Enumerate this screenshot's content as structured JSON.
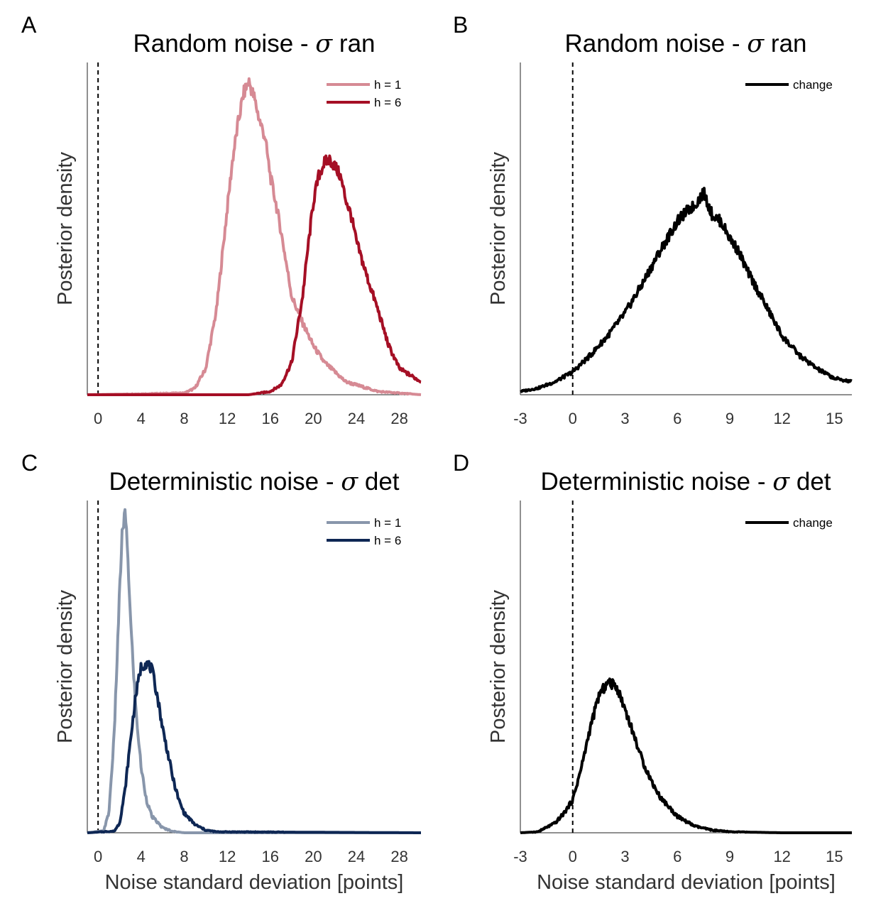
{
  "figure": {
    "panels": [
      {
        "letter": "A",
        "title_prefix": "Random noise - ",
        "title_symbol": "σ",
        "title_suffix": " ran",
        "ylabel": "Posterior density",
        "xlabel": "",
        "xlim": [
          -1,
          30
        ],
        "xticks": [
          "0",
          "4",
          "8",
          "12",
          "16",
          "20",
          "24",
          "28"
        ],
        "xtick_values": [
          0,
          4,
          8,
          12,
          16,
          20,
          24,
          28
        ],
        "legend": [
          {
            "label": "h = 1",
            "color": "#d68a94"
          },
          {
            "label": "h = 6",
            "color": "#a50f25"
          }
        ]
      },
      {
        "letter": "B",
        "title_prefix": "Random noise - ",
        "title_symbol": "σ",
        "title_suffix": " ran",
        "ylabel": "Posterior density",
        "xlabel": "",
        "xlim": [
          -3,
          16
        ],
        "xticks": [
          "-3",
          "0",
          "3",
          "6",
          "9",
          "12",
          "15"
        ],
        "xtick_values": [
          -3,
          0,
          3,
          6,
          9,
          12,
          15
        ],
        "legend": [
          {
            "label": "change",
            "color": "#000000"
          }
        ]
      },
      {
        "letter": "C",
        "title_prefix": "Deterministic noise - ",
        "title_symbol": "σ",
        "title_suffix": " det",
        "ylabel": "Posterior density",
        "xlabel": "Noise standard deviation [points]",
        "xlim": [
          -1,
          30
        ],
        "xticks": [
          "0",
          "4",
          "8",
          "12",
          "16",
          "20",
          "24",
          "28"
        ],
        "xtick_values": [
          0,
          4,
          8,
          12,
          16,
          20,
          24,
          28
        ],
        "legend": [
          {
            "label": "h = 1",
            "color": "#8896ab"
          },
          {
            "label": "h = 6",
            "color": "#0e2754"
          }
        ]
      },
      {
        "letter": "D",
        "title_prefix": "Deterministic noise - ",
        "title_symbol": "σ",
        "title_suffix": " det",
        "ylabel": "Posterior density",
        "xlabel": "Noise standard deviation [points]",
        "xlim": [
          -3,
          16
        ],
        "xticks": [
          "-3",
          "0",
          "3",
          "6",
          "9",
          "12",
          "15"
        ],
        "xtick_values": [
          -3,
          0,
          3,
          6,
          9,
          12,
          15
        ],
        "legend": [
          {
            "label": "change",
            "color": "#000000"
          }
        ]
      }
    ]
  },
  "chart_data": [
    {
      "type": "line",
      "title": "Random noise - σ ran",
      "xlabel": "",
      "ylabel": "Posterior density",
      "xlim": [
        -1,
        30
      ],
      "ylim": [
        0,
        1
      ],
      "reference_line": {
        "x": 0,
        "style": "dashed"
      },
      "legend_position": "top-right",
      "series": [
        {
          "name": "h = 1",
          "color": "#d68a94",
          "x": [
            -1,
            8,
            9,
            10,
            11,
            12,
            12.5,
            13,
            13.5,
            14,
            14.5,
            15,
            15.5,
            16,
            16.5,
            17,
            17.5,
            18,
            19,
            20,
            21,
            22,
            23,
            24,
            25,
            26,
            28,
            30
          ],
          "y": [
            0,
            0.005,
            0.02,
            0.08,
            0.26,
            0.57,
            0.72,
            0.83,
            0.92,
            0.96,
            0.91,
            0.84,
            0.79,
            0.67,
            0.59,
            0.5,
            0.4,
            0.3,
            0.22,
            0.15,
            0.1,
            0.07,
            0.04,
            0.03,
            0.02,
            0.01,
            0.005,
            0
          ]
        },
        {
          "name": "h = 6",
          "color": "#a50f25",
          "x": [
            -1,
            14,
            15,
            16,
            17,
            18,
            19,
            19.5,
            20,
            20.5,
            21,
            21.5,
            22,
            22.5,
            23,
            23.5,
            24,
            25,
            26,
            27,
            28,
            29,
            30
          ],
          "y": [
            0,
            0,
            0.005,
            0.01,
            0.03,
            0.1,
            0.3,
            0.45,
            0.59,
            0.67,
            0.71,
            0.72,
            0.7,
            0.67,
            0.6,
            0.55,
            0.47,
            0.36,
            0.26,
            0.15,
            0.08,
            0.06,
            0.04
          ]
        }
      ]
    },
    {
      "type": "line",
      "title": "Random noise - σ ran",
      "xlabel": "",
      "ylabel": "Posterior density",
      "xlim": [
        -3,
        16
      ],
      "ylim": [
        0,
        1
      ],
      "reference_line": {
        "x": 0,
        "style": "dashed"
      },
      "legend_position": "top-right",
      "series": [
        {
          "name": "change",
          "color": "#000000",
          "x": [
            -3,
            -2,
            -1,
            0,
            1,
            2,
            3,
            4,
            5,
            6,
            6.5,
            7,
            7.5,
            8,
            8.5,
            9,
            9.5,
            10,
            11,
            12,
            13,
            14,
            15,
            16
          ],
          "y": [
            0.01,
            0.02,
            0.04,
            0.07,
            0.12,
            0.18,
            0.25,
            0.34,
            0.44,
            0.53,
            0.56,
            0.58,
            0.62,
            0.55,
            0.53,
            0.48,
            0.44,
            0.38,
            0.28,
            0.18,
            0.12,
            0.08,
            0.05,
            0.04
          ]
        }
      ]
    },
    {
      "type": "line",
      "title": "Deterministic noise - σ det",
      "xlabel": "Noise standard deviation [points]",
      "ylabel": "Posterior density",
      "xlim": [
        -1,
        30
      ],
      "ylim": [
        0,
        1
      ],
      "reference_line": {
        "x": 0,
        "style": "dashed"
      },
      "legend_position": "top-right",
      "series": [
        {
          "name": "h = 1",
          "color": "#8896ab",
          "x": [
            -1,
            0.5,
            1,
            1.5,
            2,
            2.25,
            2.5,
            2.75,
            3,
            3.5,
            4,
            4.5,
            5,
            6,
            7,
            8,
            30
          ],
          "y": [
            0,
            0.005,
            0.06,
            0.3,
            0.74,
            0.92,
            0.98,
            0.86,
            0.66,
            0.38,
            0.2,
            0.1,
            0.05,
            0.015,
            0.004,
            0,
            0
          ]
        },
        {
          "name": "h = 6",
          "color": "#0e2754",
          "x": [
            -1,
            1.5,
            2,
            2.5,
            3,
            3.5,
            4,
            4.5,
            5,
            5.5,
            6,
            6.5,
            7,
            7.5,
            8,
            9,
            10,
            11,
            30
          ],
          "y": [
            0,
            0.005,
            0.03,
            0.13,
            0.28,
            0.42,
            0.51,
            0.52,
            0.5,
            0.42,
            0.32,
            0.24,
            0.16,
            0.1,
            0.06,
            0.025,
            0.008,
            0.003,
            0
          ]
        }
      ]
    },
    {
      "type": "line",
      "title": "Deterministic noise - σ det",
      "xlabel": "Noise standard deviation [points]",
      "ylabel": "Posterior density",
      "xlim": [
        -3,
        16
      ],
      "ylim": [
        0,
        1
      ],
      "reference_line": {
        "x": 0,
        "style": "dashed"
      },
      "legend_position": "top-right",
      "series": [
        {
          "name": "change",
          "color": "#000000",
          "x": [
            -3,
            -2,
            -1,
            -0.5,
            0,
            0.5,
            1,
            1.5,
            2,
            2.5,
            3,
            3.5,
            4,
            4.5,
            5,
            6,
            7,
            8,
            9,
            12,
            16
          ],
          "y": [
            0,
            0.003,
            0.03,
            0.06,
            0.1,
            0.2,
            0.32,
            0.42,
            0.46,
            0.45,
            0.38,
            0.3,
            0.22,
            0.16,
            0.11,
            0.05,
            0.02,
            0.008,
            0.003,
            0,
            0
          ]
        }
      ]
    }
  ]
}
